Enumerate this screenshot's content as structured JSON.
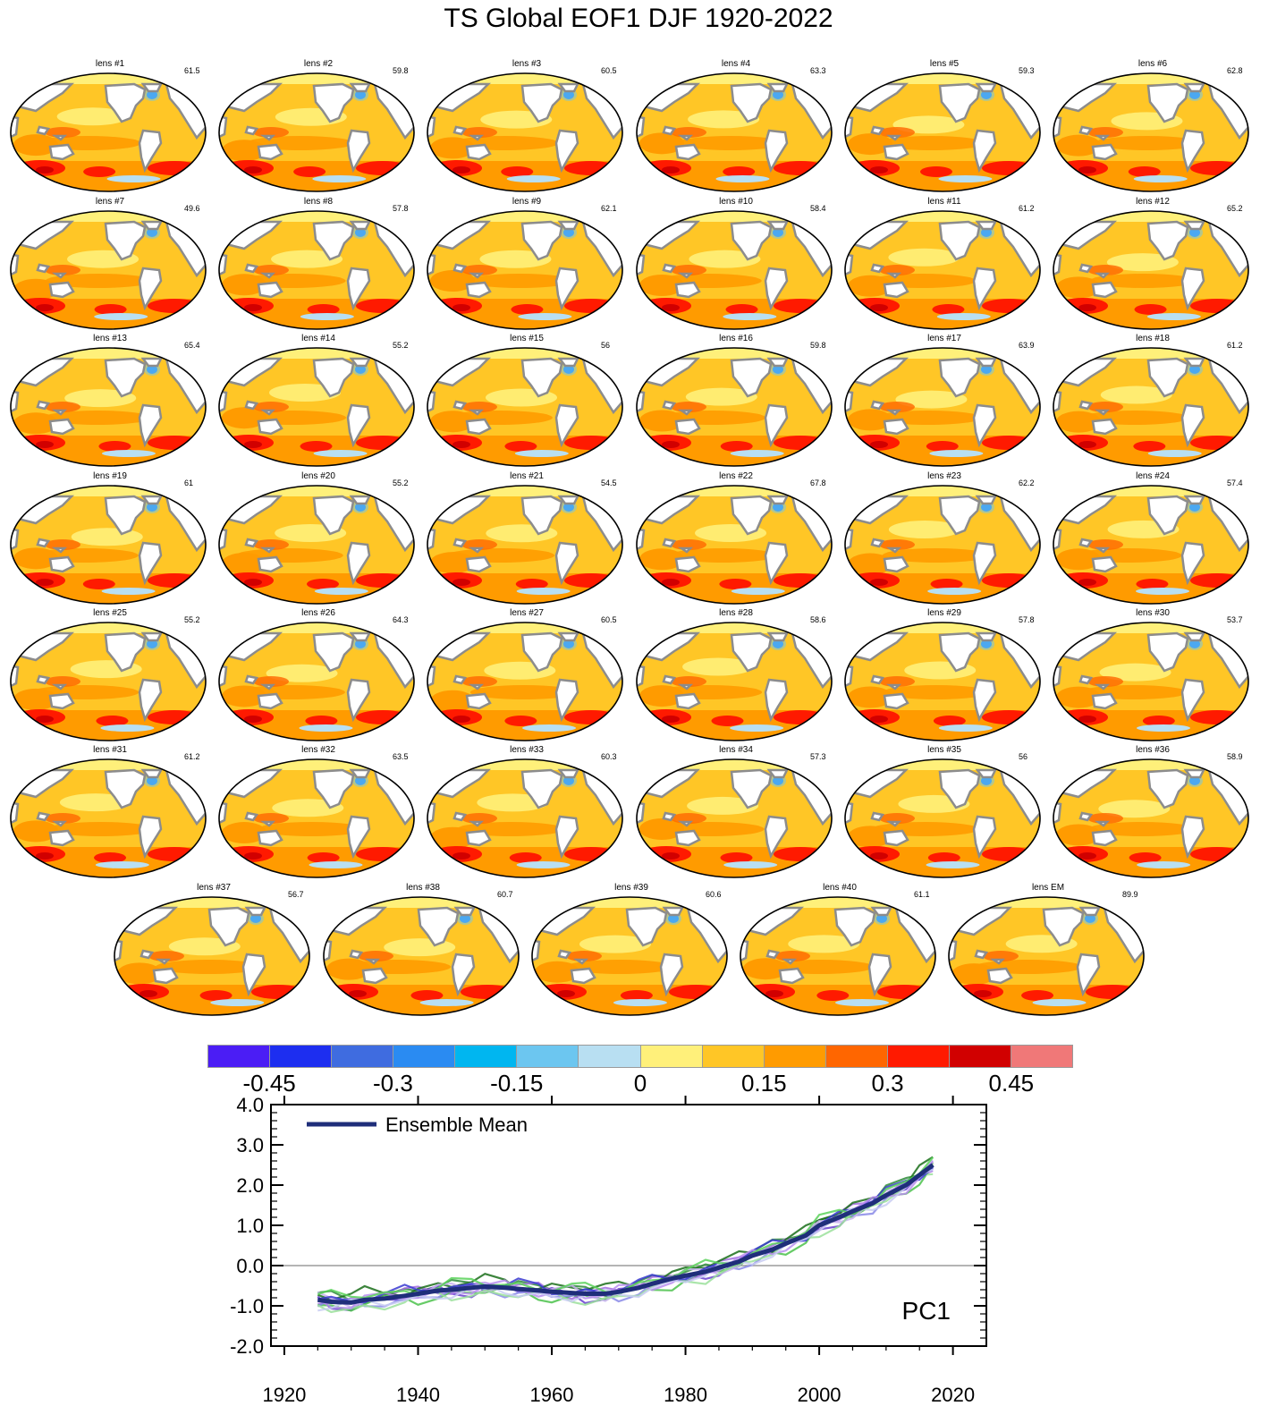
{
  "title": "TS Global EOF1 DJF 1920-2022",
  "panels": [
    {
      "label": "lens #1",
      "pct": "61.5"
    },
    {
      "label": "lens #2",
      "pct": "59.8"
    },
    {
      "label": "lens #3",
      "pct": "60.5"
    },
    {
      "label": "lens #4",
      "pct": "63.3"
    },
    {
      "label": "lens #5",
      "pct": "59.3"
    },
    {
      "label": "lens #6",
      "pct": "62.8"
    },
    {
      "label": "lens #7",
      "pct": "49.6"
    },
    {
      "label": "lens #8",
      "pct": "57.8"
    },
    {
      "label": "lens #9",
      "pct": "62.1"
    },
    {
      "label": "lens #10",
      "pct": "58.4"
    },
    {
      "label": "lens #11",
      "pct": "61.2"
    },
    {
      "label": "lens #12",
      "pct": "65.2"
    },
    {
      "label": "lens #13",
      "pct": "65.4"
    },
    {
      "label": "lens #14",
      "pct": "55.2"
    },
    {
      "label": "lens #15",
      "pct": "56"
    },
    {
      "label": "lens #16",
      "pct": "59.8"
    },
    {
      "label": "lens #17",
      "pct": "63.9"
    },
    {
      "label": "lens #18",
      "pct": "61.2"
    },
    {
      "label": "lens #19",
      "pct": "61"
    },
    {
      "label": "lens #20",
      "pct": "55.2"
    },
    {
      "label": "lens #21",
      "pct": "54.5"
    },
    {
      "label": "lens #22",
      "pct": "67.8"
    },
    {
      "label": "lens #23",
      "pct": "62.2"
    },
    {
      "label": "lens #24",
      "pct": "57.4"
    },
    {
      "label": "lens #25",
      "pct": "55.2"
    },
    {
      "label": "lens #26",
      "pct": "64.3"
    },
    {
      "label": "lens #27",
      "pct": "60.5"
    },
    {
      "label": "lens #28",
      "pct": "58.6"
    },
    {
      "label": "lens #29",
      "pct": "57.8"
    },
    {
      "label": "lens #30",
      "pct": "53.7"
    },
    {
      "label": "lens #31",
      "pct": "61.2"
    },
    {
      "label": "lens #32",
      "pct": "63.5"
    },
    {
      "label": "lens #33",
      "pct": "60.3"
    },
    {
      "label": "lens #34",
      "pct": "57.3"
    },
    {
      "label": "lens #35",
      "pct": "56"
    },
    {
      "label": "lens #36",
      "pct": "58.9"
    },
    {
      "label": "lens #37",
      "pct": "56.7"
    },
    {
      "label": "lens #38",
      "pct": "60.7"
    },
    {
      "label": "lens #39",
      "pct": "60.6"
    },
    {
      "label": "lens #40",
      "pct": "61.1"
    },
    {
      "label": "lens EM",
      "pct": "89.9"
    }
  ],
  "colorbar": {
    "colors": [
      "#4b1df5",
      "#1d2ef0",
      "#3f6ce0",
      "#2a8bf2",
      "#00b6f0",
      "#6cc6f0",
      "#b8dff2",
      "#fff07a",
      "#ffc626",
      "#ff9b00",
      "#ff6600",
      "#ff1a00",
      "#d10000",
      "#f07878"
    ],
    "tick_labels": [
      "-0.45",
      "-0.3",
      "-0.15",
      "0",
      "0.15",
      "0.3",
      "0.45"
    ],
    "tick_values": [
      -0.45,
      -0.3,
      -0.15,
      0,
      0.15,
      0.3,
      0.45
    ],
    "range": [
      -0.525,
      0.525
    ]
  },
  "chart_data": {
    "type": "line",
    "title": "PC1",
    "legend": "Ensemble Mean",
    "legend_location": "top-left",
    "xlabel": "",
    "ylabel": "",
    "xlim": [
      1918,
      2025
    ],
    "ylim": [
      -2.0,
      4.0
    ],
    "xticks": [
      1920,
      1940,
      1960,
      1980,
      2000,
      2020
    ],
    "yticks": [
      "-2.0",
      "-1.0",
      "0.0",
      "1.0",
      "2.0",
      "3.0",
      "4.0"
    ],
    "ensemble_mean": {
      "name": "Ensemble Mean",
      "color": "#1f2e7a",
      "x": [
        1925,
        1927,
        1930,
        1932,
        1935,
        1938,
        1940,
        1943,
        1945,
        1948,
        1950,
        1953,
        1955,
        1958,
        1960,
        1963,
        1965,
        1968,
        1970,
        1973,
        1975,
        1978,
        1980,
        1983,
        1985,
        1988,
        1990,
        1993,
        1995,
        1998,
        2000,
        2003,
        2005,
        2008,
        2010,
        2013,
        2015,
        2017
      ],
      "y": [
        -0.85,
        -0.9,
        -0.92,
        -0.85,
        -0.82,
        -0.75,
        -0.7,
        -0.62,
        -0.6,
        -0.55,
        -0.52,
        -0.55,
        -0.58,
        -0.62,
        -0.65,
        -0.68,
        -0.7,
        -0.7,
        -0.65,
        -0.55,
        -0.45,
        -0.32,
        -0.25,
        -0.15,
        -0.05,
        0.1,
        0.25,
        0.4,
        0.55,
        0.75,
        1.0,
        1.2,
        1.35,
        1.55,
        1.75,
        2.0,
        2.25,
        2.5
      ]
    },
    "members": [
      {
        "color": "#2e8b3a",
        "y_offset": 0.1
      },
      {
        "color": "#6a3fd0",
        "y_offset": -0.05
      },
      {
        "color": "#a36de0",
        "y_offset": 0.05
      },
      {
        "color": "#4cc24c",
        "y_offset": -0.12
      },
      {
        "color": "#1a6e1a",
        "y_offset": 0.15
      },
      {
        "color": "#8a8ae8",
        "y_offset": -0.08
      },
      {
        "color": "#c9b3f0",
        "y_offset": 0.0
      },
      {
        "color": "#9be09b",
        "y_offset": -0.15
      },
      {
        "color": "#3a3ad0",
        "y_offset": 0.08
      },
      {
        "color": "#b98ef0",
        "y_offset": -0.02
      },
      {
        "color": "#c8cdf2",
        "y_offset": -0.1
      },
      {
        "color": "#5ad25a",
        "y_offset": 0.12
      }
    ]
  }
}
